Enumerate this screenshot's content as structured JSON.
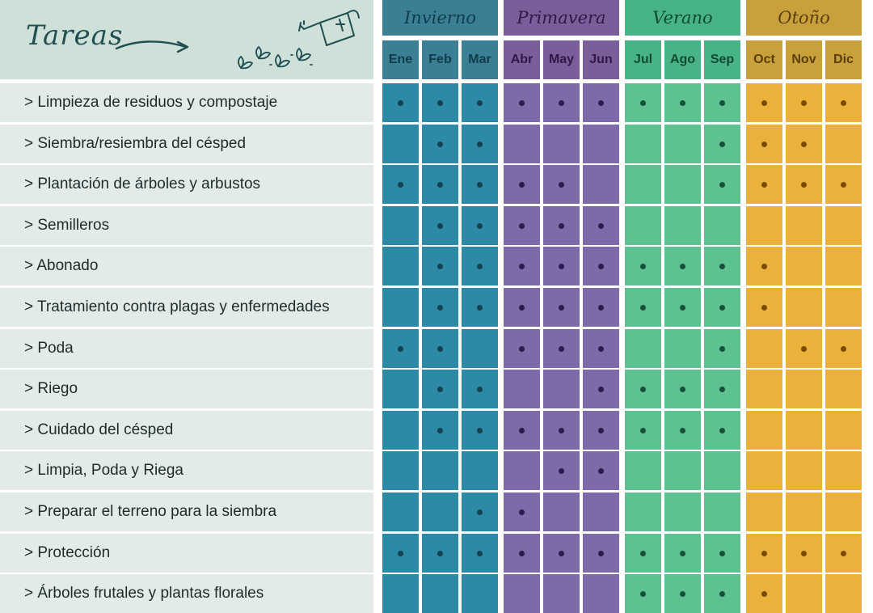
{
  "header": {
    "title": "Tareas",
    "arrow_icon": "arrow-right-icon",
    "sprouts_icon": "sprouts-icon",
    "watering_can_icon": "watering-can-icon"
  },
  "seasons": [
    {
      "name": "Invierno",
      "header_color": "#3a7f94",
      "cell_color": "#2c8aa6",
      "text_color": "#0f3b4a",
      "dot_color": "#14414f",
      "months": [
        "Ene",
        "Feb",
        "Mar"
      ]
    },
    {
      "name": "Primavera",
      "header_color": "#7a5e9a",
      "cell_color": "#7e6aa8",
      "text_color": "#2d1847",
      "dot_color": "#2b1a4a",
      "months": [
        "Abr",
        "May",
        "Jun"
      ]
    },
    {
      "name": "Verano",
      "header_color": "#48b386",
      "cell_color": "#5ec290",
      "text_color": "#0f4a33",
      "dot_color": "#17503a",
      "months": [
        "Jul",
        "Ago",
        "Sep"
      ]
    },
    {
      "name": "Otoño",
      "header_color": "#c9a13c",
      "cell_color": "#eab23a",
      "text_color": "#5b3e0a",
      "dot_color": "#7a4a05",
      "months": [
        "Oct",
        "Nov",
        "Dic"
      ]
    }
  ],
  "tasks": [
    {
      "label": "> Limpieza de residuos y compostaje",
      "months": [
        1,
        1,
        1,
        1,
        1,
        1,
        1,
        1,
        1,
        1,
        1,
        1
      ]
    },
    {
      "label": "> Siembra/resiembra del césped",
      "months": [
        0,
        1,
        1,
        0,
        0,
        0,
        0,
        0,
        1,
        1,
        1,
        0
      ]
    },
    {
      "label": "> Plantación de árboles y arbustos",
      "months": [
        1,
        1,
        1,
        1,
        1,
        0,
        0,
        0,
        1,
        1,
        1,
        1
      ]
    },
    {
      "label": "> Semilleros",
      "months": [
        0,
        1,
        1,
        1,
        1,
        1,
        0,
        0,
        0,
        0,
        0,
        0
      ]
    },
    {
      "label": "> Abonado",
      "months": [
        0,
        1,
        1,
        1,
        1,
        1,
        1,
        1,
        1,
        1,
        0,
        0
      ]
    },
    {
      "label": "> Tratamiento contra plagas y enfermedades",
      "months": [
        0,
        1,
        1,
        1,
        1,
        1,
        1,
        1,
        1,
        1,
        0,
        0
      ]
    },
    {
      "label": "> Poda",
      "months": [
        1,
        1,
        0,
        1,
        1,
        1,
        0,
        0,
        1,
        0,
        1,
        1
      ]
    },
    {
      "label": "> Riego",
      "months": [
        0,
        1,
        1,
        0,
        0,
        1,
        1,
        1,
        1,
        0,
        0,
        0
      ]
    },
    {
      "label": "> Cuidado del césped",
      "months": [
        0,
        1,
        1,
        1,
        1,
        1,
        1,
        1,
        1,
        0,
        0,
        0
      ]
    },
    {
      "label": "> Limpia, Poda y Riega",
      "months": [
        0,
        0,
        0,
        0,
        1,
        1,
        0,
        0,
        0,
        0,
        0,
        0
      ]
    },
    {
      "label": "> Preparar el terreno para la siembra",
      "months": [
        0,
        0,
        1,
        1,
        0,
        0,
        0,
        0,
        0,
        0,
        0,
        0
      ]
    },
    {
      "label": "> Protección",
      "months": [
        1,
        1,
        1,
        1,
        1,
        1,
        1,
        1,
        1,
        1,
        1,
        1
      ]
    },
    {
      "label": "> Árboles frutales y plantas florales",
      "months": [
        0,
        0,
        0,
        0,
        0,
        0,
        1,
        1,
        1,
        1,
        0,
        0
      ]
    }
  ]
}
